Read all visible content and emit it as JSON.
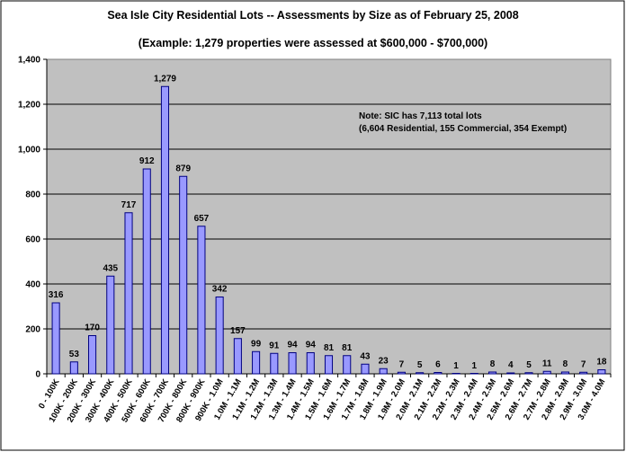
{
  "chart_data": {
    "type": "bar",
    "title": "Sea Isle City Residential Lots -- Assessments by Size as of February 25, 2008",
    "subtitle": "(Example: 1,279 properties were assessed at $600,000 - $700,000)",
    "xlabel": "",
    "ylabel": "",
    "ylim": [
      0,
      1400
    ],
    "yticks": [
      0,
      200,
      400,
      600,
      800,
      1000,
      1200,
      1400
    ],
    "ytick_labels": [
      "0",
      "200",
      "400",
      "600",
      "800",
      "1,000",
      "1,200",
      "1,400"
    ],
    "grid": true,
    "legend": "none",
    "categories": [
      "0 - 100K",
      "100K - 200K",
      "200K - 300K",
      "300K - 400K",
      "400K - 500K",
      "500K - 600K",
      "600K - 700K",
      "700K - 800K",
      "800K - 900K",
      "900K - 1.0M",
      "1.0M - 1.1M",
      "1.1M - 1.2M",
      "1.2M - 1.3M",
      "1.3M - 1.4M",
      "1.4M - 1.5M",
      "1.5M - 1.6M",
      "1.6M - 1.7M",
      "1.7M - 1.8M",
      "1.8M - 1.9M",
      "1.9M - 2.0M",
      "2.0M - 2.1M",
      "2.1M - 2.2M",
      "2.2M - 2.3M",
      "2.3M - 2.4M",
      "2.4M - 2.5M",
      "2.5M - 2.6M",
      "2.6M - 2.7M",
      "2.7M - 2.8M",
      "2.8M - 2.9M",
      "2.9M - 3.0M",
      "3.0M - 4.0M"
    ],
    "values": [
      316,
      53,
      170,
      435,
      717,
      912,
      1279,
      879,
      657,
      342,
      157,
      99,
      91,
      94,
      94,
      81,
      81,
      43,
      23,
      7,
      5,
      6,
      1,
      1,
      8,
      4,
      5,
      11,
      8,
      7,
      18
    ],
    "data_labels": [
      "316",
      "53",
      "170",
      "435",
      "717",
      "912",
      "1,279",
      "879",
      "657",
      "342",
      "157",
      "99",
      "91",
      "94",
      "94",
      "81",
      "81",
      "43",
      "23",
      "7",
      "5",
      "6",
      "1",
      "1",
      "8",
      "4",
      "5",
      "11",
      "8",
      "7",
      "18"
    ],
    "annotations": [
      "Note:  SIC has 7,113 total lots",
      "(6,604 Residential, 155 Commercial, 354 Exempt)"
    ],
    "colors": {
      "bar_fill": "#9999ff",
      "bar_stroke": "#000080",
      "plot_bg": "#c0c0c0",
      "gridline": "#000000"
    }
  }
}
